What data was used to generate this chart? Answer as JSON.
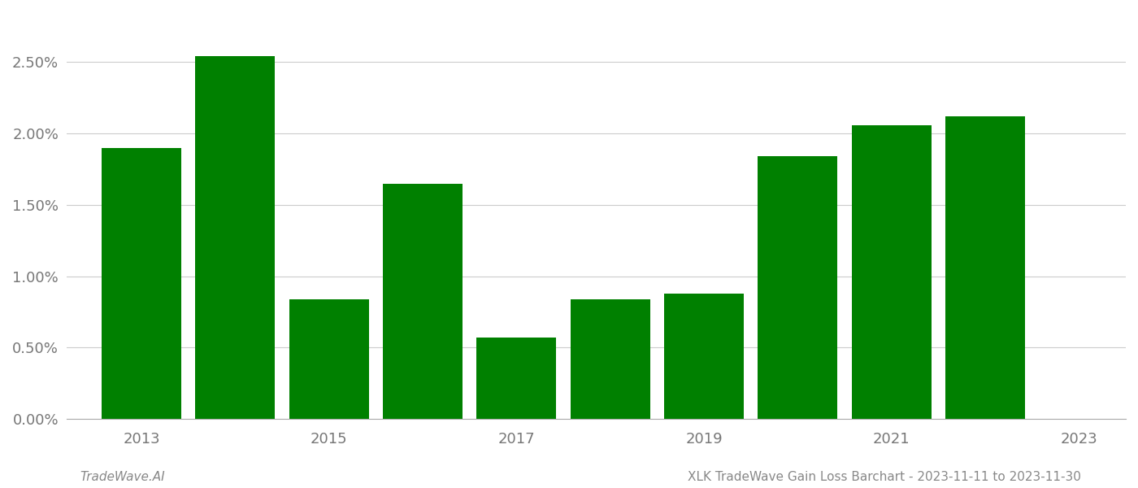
{
  "years": [
    2013,
    2014,
    2015,
    2016,
    2017,
    2018,
    2019,
    2020,
    2021,
    2022
  ],
  "values": [
    0.019,
    0.0254,
    0.0084,
    0.0165,
    0.0057,
    0.0084,
    0.0088,
    0.0184,
    0.0206,
    0.0212
  ],
  "bar_color": "#008000",
  "ylim": [
    0,
    0.0285
  ],
  "yticks": [
    0.0,
    0.005,
    0.01,
    0.015,
    0.02,
    0.025
  ],
  "ytick_labels": [
    "0.00%",
    "0.50%",
    "1.00%",
    "1.50%",
    "2.00%",
    "2.50%"
  ],
  "xtick_labels": [
    "2013",
    "2015",
    "2017",
    "2019",
    "2021",
    "2023"
  ],
  "xtick_positions": [
    2013,
    2015,
    2017,
    2019,
    2021,
    2023
  ],
  "footer_left": "TradeWave.AI",
  "footer_right": "XLK TradeWave Gain Loss Barchart - 2023-11-11 to 2023-11-30",
  "background_color": "#ffffff",
  "grid_color": "#cccccc",
  "axis_fontsize": 13,
  "footer_fontsize": 11,
  "bar_width": 0.85
}
